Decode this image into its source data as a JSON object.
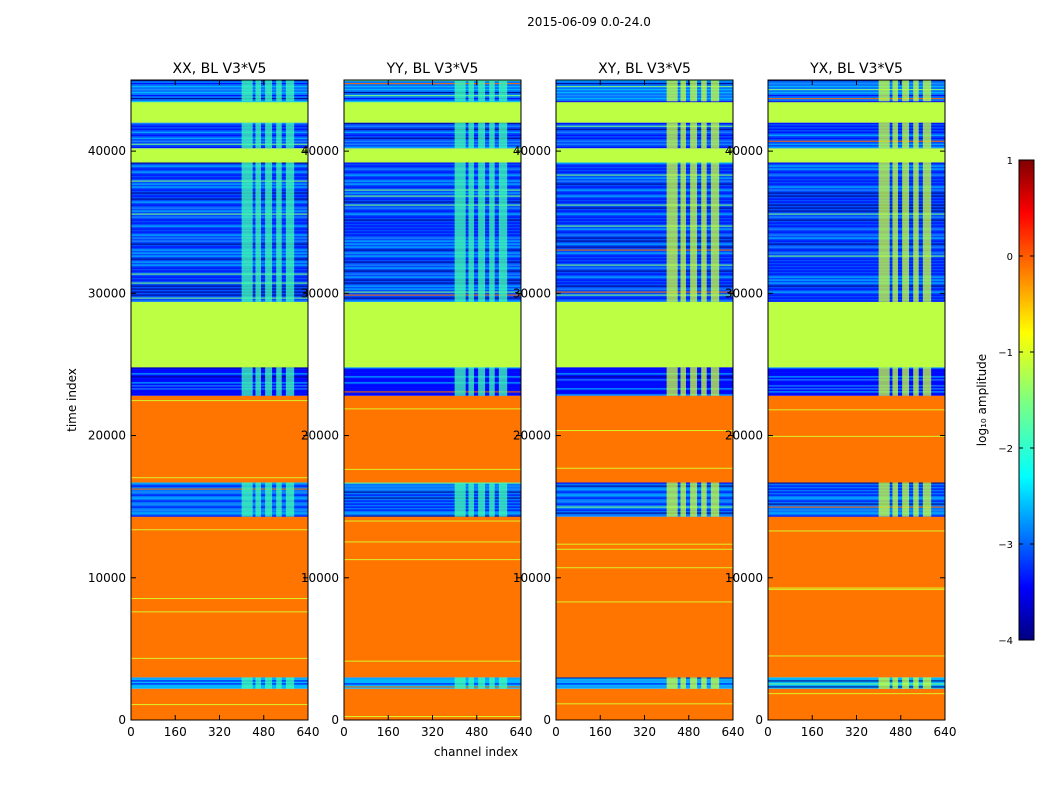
{
  "chart_data": {
    "type": "heatmap",
    "suptitle": "2015-06-09 0.0-24.0",
    "xlabel": "channel index",
    "ylabel": "time index",
    "xlim": [
      0,
      640
    ],
    "ylim": [
      0,
      45000
    ],
    "xticks": [
      "0",
      "160",
      "320",
      "480",
      "640"
    ],
    "yticks": [
      "0",
      "10000",
      "20000",
      "30000",
      "40000"
    ],
    "colorbar": {
      "label": "log₁₀ amplitude",
      "range": [
        -4,
        1
      ],
      "ticks": [
        "1",
        "0",
        "−1",
        "−2",
        "−3",
        "−4"
      ]
    },
    "panels": [
      {
        "title": "XX, BL V3*V5"
      },
      {
        "title": "YY, BL V3*V5"
      },
      {
        "title": "XY, BL V3*V5"
      },
      {
        "title": "YX, BL V3*V5"
      }
    ],
    "time_segments": [
      {
        "from": 0,
        "to": 2200,
        "value": -0.2
      },
      {
        "from": 2200,
        "to": 3000,
        "value": -2.5
      },
      {
        "from": 3000,
        "to": 14300,
        "value": -0.2
      },
      {
        "from": 14300,
        "to": 16700,
        "value": -2.8
      },
      {
        "from": 16700,
        "to": 22800,
        "value": -0.2
      },
      {
        "from": 22800,
        "to": 24800,
        "value": -3.3
      },
      {
        "from": 24800,
        "to": 29400,
        "value": -1.2
      },
      {
        "from": 29400,
        "to": 39200,
        "value": -3.0
      },
      {
        "from": 39200,
        "to": 40200,
        "value": -1.2
      },
      {
        "from": 40200,
        "to": 42000,
        "value": -3.0
      },
      {
        "from": 42000,
        "to": 43500,
        "value": -1.2
      },
      {
        "from": 43500,
        "to": 45000,
        "value": -2.8
      }
    ]
  }
}
